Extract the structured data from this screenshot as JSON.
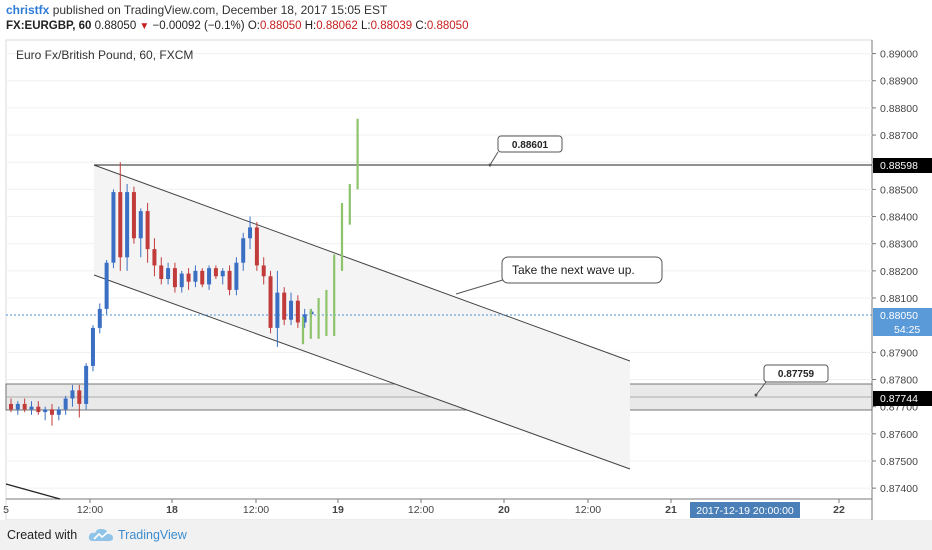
{
  "header": {
    "author": "christfx",
    "published": "published on TradingView.com, December 18, 2017 15:05 EST",
    "symbol": "FX:EURGBP, 60",
    "last": "0.88050",
    "change_arrow": "▼",
    "change": "−0.00092 (−0.1%)",
    "o_label": "O:",
    "o_value": "0.88050",
    "h_label": "H:",
    "h_value": "0.88062",
    "l_label": "L:",
    "l_value": "0.88039",
    "c_label": "C:",
    "c_value": "0.88050"
  },
  "footer": {
    "created_with": "Created with",
    "brand": "TradingView"
  },
  "colors": {
    "up": "#3a6fc4",
    "down": "#c23b3b",
    "projection": "#8dc36b",
    "price_line": "#4a90d9",
    "label_bg": "#000000"
  },
  "chart_data": {
    "type": "candlestick",
    "title": "Euro Fx/British Pound, 60, FXCM",
    "ylim": [
      0.8736,
      0.8905
    ],
    "y_ticks": [
      "0.89000",
      "0.88900",
      "0.88800",
      "0.88700",
      "0.88600",
      "0.88500",
      "0.88400",
      "0.88300",
      "0.88200",
      "0.88100",
      "0.87900",
      "0.87800",
      "0.87700",
      "0.87600",
      "0.87500",
      "0.87400"
    ],
    "x_ticks": [
      "12:00",
      "18",
      "12:00",
      "19",
      "12:00",
      "20",
      "12:00",
      "21",
      "22"
    ],
    "x_tick_first": "5",
    "crosshair_time": "2017-12-19 20:00:00",
    "price_labels": {
      "resistance": "0.88598",
      "current": "0.88050",
      "countdown": "54:25",
      "support": "0.87744"
    },
    "candles": [
      {
        "o": 0.8771,
        "h": 0.8773,
        "l": 0.8768,
        "c": 0.8769
      },
      {
        "o": 0.8769,
        "h": 0.8772,
        "l": 0.8767,
        "c": 0.8771
      },
      {
        "o": 0.8771,
        "h": 0.8773,
        "l": 0.8768,
        "c": 0.8769
      },
      {
        "o": 0.8769,
        "h": 0.8772,
        "l": 0.8767,
        "c": 0.877
      },
      {
        "o": 0.877,
        "h": 0.8772,
        "l": 0.8767,
        "c": 0.8768
      },
      {
        "o": 0.8768,
        "h": 0.877,
        "l": 0.8765,
        "c": 0.8769
      },
      {
        "o": 0.8769,
        "h": 0.8771,
        "l": 0.8763,
        "c": 0.8767
      },
      {
        "o": 0.8767,
        "h": 0.877,
        "l": 0.8765,
        "c": 0.8769
      },
      {
        "o": 0.8769,
        "h": 0.8774,
        "l": 0.8767,
        "c": 0.8773
      },
      {
        "o": 0.8773,
        "h": 0.8778,
        "l": 0.877,
        "c": 0.8776
      },
      {
        "o": 0.8776,
        "h": 0.8778,
        "l": 0.8766,
        "c": 0.8771
      },
      {
        "o": 0.8771,
        "h": 0.8786,
        "l": 0.8769,
        "c": 0.8785
      },
      {
        "o": 0.8785,
        "h": 0.88,
        "l": 0.8783,
        "c": 0.8799
      },
      {
        "o": 0.8799,
        "h": 0.8808,
        "l": 0.8797,
        "c": 0.8806
      },
      {
        "o": 0.8806,
        "h": 0.8824,
        "l": 0.8804,
        "c": 0.8823
      },
      {
        "o": 0.8823,
        "h": 0.885,
        "l": 0.8821,
        "c": 0.8849
      },
      {
        "o": 0.8849,
        "h": 0.886,
        "l": 0.882,
        "c": 0.8825
      },
      {
        "o": 0.8825,
        "h": 0.8852,
        "l": 0.882,
        "c": 0.8849
      },
      {
        "o": 0.8849,
        "h": 0.8851,
        "l": 0.883,
        "c": 0.8832
      },
      {
        "o": 0.8832,
        "h": 0.8843,
        "l": 0.8825,
        "c": 0.8842
      },
      {
        "o": 0.8842,
        "h": 0.8845,
        "l": 0.8823,
        "c": 0.8828
      },
      {
        "o": 0.8828,
        "h": 0.8832,
        "l": 0.8818,
        "c": 0.8822
      },
      {
        "o": 0.8822,
        "h": 0.8825,
        "l": 0.8815,
        "c": 0.8817
      },
      {
        "o": 0.8817,
        "h": 0.8823,
        "l": 0.8815,
        "c": 0.8821
      },
      {
        "o": 0.8821,
        "h": 0.8823,
        "l": 0.8812,
        "c": 0.8814
      },
      {
        "o": 0.8814,
        "h": 0.882,
        "l": 0.8812,
        "c": 0.8819
      },
      {
        "o": 0.8819,
        "h": 0.8821,
        "l": 0.8813,
        "c": 0.8816
      },
      {
        "o": 0.8816,
        "h": 0.8822,
        "l": 0.8814,
        "c": 0.882
      },
      {
        "o": 0.882,
        "h": 0.8821,
        "l": 0.8814,
        "c": 0.8815
      },
      {
        "o": 0.8815,
        "h": 0.8822,
        "l": 0.8813,
        "c": 0.8821
      },
      {
        "o": 0.8821,
        "h": 0.8822,
        "l": 0.8817,
        "c": 0.8818
      },
      {
        "o": 0.8818,
        "h": 0.8821,
        "l": 0.8815,
        "c": 0.882
      },
      {
        "o": 0.882,
        "h": 0.8822,
        "l": 0.8811,
        "c": 0.8813
      },
      {
        "o": 0.8813,
        "h": 0.8825,
        "l": 0.8811,
        "c": 0.8823
      },
      {
        "o": 0.8823,
        "h": 0.8834,
        "l": 0.882,
        "c": 0.8832
      },
      {
        "o": 0.8832,
        "h": 0.884,
        "l": 0.8828,
        "c": 0.8836
      },
      {
        "o": 0.8836,
        "h": 0.8838,
        "l": 0.882,
        "c": 0.8822
      },
      {
        "o": 0.8822,
        "h": 0.8825,
        "l": 0.8815,
        "c": 0.8818
      },
      {
        "o": 0.8818,
        "h": 0.882,
        "l": 0.8797,
        "c": 0.8799
      },
      {
        "o": 0.8799,
        "h": 0.882,
        "l": 0.8792,
        "c": 0.8812
      },
      {
        "o": 0.8812,
        "h": 0.8814,
        "l": 0.88,
        "c": 0.8802
      },
      {
        "o": 0.8802,
        "h": 0.8812,
        "l": 0.88,
        "c": 0.8809
      },
      {
        "o": 0.8809,
        "h": 0.8811,
        "l": 0.8799,
        "c": 0.8801
      },
      {
        "o": 0.8801,
        "h": 0.8806,
        "l": 0.8799,
        "c": 0.8804
      },
      {
        "o": 0.8804,
        "h": 0.8806,
        "l": 0.8803,
        "c": 0.8805
      }
    ],
    "projection_bars": [
      {
        "low": 0.8793,
        "high": 0.8803
      },
      {
        "low": 0.8795,
        "high": 0.8806
      },
      {
        "low": 0.8795,
        "high": 0.881
      },
      {
        "low": 0.8796,
        "high": 0.8813
      },
      {
        "low": 0.8796,
        "high": 0.8826
      },
      {
        "low": 0.882,
        "high": 0.8845
      },
      {
        "low": 0.8837,
        "high": 0.8852
      },
      {
        "low": 0.885,
        "high": 0.8876
      }
    ],
    "annotations": [
      {
        "text": "0.88601"
      },
      {
        "text": "Take the next wave up."
      },
      {
        "text": "0.87759"
      }
    ]
  }
}
